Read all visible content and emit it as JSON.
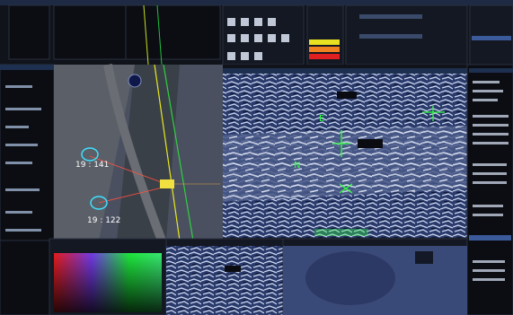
{
  "map": {
    "tracks": [
      {
        "label": "19 : 141"
      },
      {
        "label": "19 : 122"
      }
    ]
  },
  "video": {
    "markers": [
      "E",
      "N"
    ]
  }
}
